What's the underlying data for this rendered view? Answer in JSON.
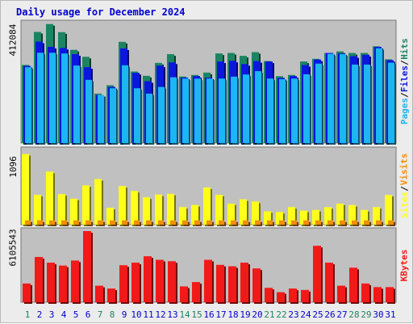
{
  "chart_data": {
    "type": "bar",
    "title": "Daily usage for December 2024",
    "days": [
      "1",
      "2",
      "3",
      "4",
      "5",
      "6",
      "7",
      "8",
      "9",
      "10",
      "11",
      "12",
      "13",
      "14",
      "15",
      "16",
      "17",
      "18",
      "19",
      "20",
      "21",
      "22",
      "23",
      "24",
      "25",
      "26",
      "27",
      "28",
      "29",
      "30",
      "31"
    ],
    "weekend_days": [
      "1",
      "7",
      "8",
      "14",
      "15",
      "21",
      "22",
      "28",
      "29"
    ],
    "colors": {
      "hits": "#1c8462",
      "files": "#0a17dd",
      "pages": "#1db5f3",
      "visits": "#f28e0c",
      "sites": "#ffff1a",
      "kbytes": "#f21919",
      "weekday_label": "#0000cc",
      "weekend_label": "#1c8462",
      "panel_bg": "#c0c0c0"
    },
    "panels": [
      {
        "id": "hits",
        "ymax_label": "412084",
        "ymax": 412084,
        "legend": [
          "Pages",
          "Files",
          "Hits"
        ],
        "series": [
          {
            "name": "Hits",
            "color_key": "hits",
            "values": [
              0.653,
              0.929,
              0.995,
              0.927,
              0.779,
              0.721,
              0.413,
              0.483,
              0.846,
              0.598,
              0.562,
              0.67,
              0.743,
              0.556,
              0.569,
              0.589,
              0.749,
              0.753,
              0.729,
              0.76,
              0.685,
              0.559,
              0.569,
              0.682,
              0.704,
              0.753,
              0.766,
              0.753,
              0.753,
              0.809,
              0.7
            ]
          },
          {
            "name": "Files",
            "color_key": "files",
            "values": [
              0.645,
              0.848,
              0.804,
              0.795,
              0.743,
              0.634,
              0.402,
              0.469,
              0.791,
              0.587,
              0.517,
              0.648,
              0.674,
              0.547,
              0.56,
              0.547,
              0.682,
              0.688,
              0.66,
              0.685,
              0.682,
              0.544,
              0.56,
              0.652,
              0.698,
              0.753,
              0.749,
              0.726,
              0.737,
              0.804,
              0.693
            ]
          },
          {
            "name": "Pages",
            "color_key": "pages",
            "values": [
              0.634,
              0.755,
              0.755,
              0.749,
              0.648,
              0.528,
              0.402,
              0.458,
              0.65,
              0.458,
              0.413,
              0.469,
              0.55,
              0.539,
              0.539,
              0.539,
              0.539,
              0.555,
              0.573,
              0.601,
              0.539,
              0.534,
              0.539,
              0.575,
              0.664,
              0.746,
              0.743,
              0.656,
              0.656,
              0.792,
              0.672
            ]
          }
        ]
      },
      {
        "id": "visits",
        "ymax_label": "1096",
        "ymax": 1096,
        "legend": [
          "Sites",
          "Visits"
        ],
        "series": [
          {
            "name": "Sites",
            "color_key": "sites",
            "values": [
              0.949,
              0.401,
              0.712,
              0.411,
              0.349,
              0.528,
              0.613,
              0.226,
              0.519,
              0.453,
              0.368,
              0.405,
              0.415,
              0.236,
              0.264,
              0.5,
              0.401,
              0.283,
              0.34,
              0.311,
              0.179,
              0.17,
              0.236,
              0.189,
              0.198,
              0.236,
              0.283,
              0.264,
              0.198,
              0.236,
              0.4
            ]
          },
          {
            "name": "Visits",
            "color_key": "visits",
            "values": [
              0.057,
              0.057,
              0.057,
              0.057,
              0.057,
              0.057,
              0.057,
              0.057,
              0.057,
              0.057,
              0.057,
              0.057,
              0.057,
              0.057,
              0.057,
              0.057,
              0.057,
              0.057,
              0.057,
              0.057,
              0.057,
              0.057,
              0.057,
              0.057,
              0.057,
              0.057,
              0.057,
              0.057,
              0.057,
              0.057,
              0.057
            ]
          }
        ]
      },
      {
        "id": "kbytes",
        "ymax_label": "6105543",
        "ymax": 6105543,
        "legend": [
          "KBytes"
        ],
        "series": [
          {
            "name": "KBytes",
            "color_key": "kbytes",
            "values": [
              0.263,
              0.636,
              0.556,
              0.515,
              0.586,
              1.0,
              0.232,
              0.192,
              0.52,
              0.556,
              0.646,
              0.596,
              0.576,
              0.222,
              0.283,
              0.596,
              0.525,
              0.505,
              0.556,
              0.475,
              0.202,
              0.141,
              0.192,
              0.172,
              0.793,
              0.556,
              0.232,
              0.485,
              0.263,
              0.212,
              0.212
            ]
          }
        ]
      }
    ]
  }
}
